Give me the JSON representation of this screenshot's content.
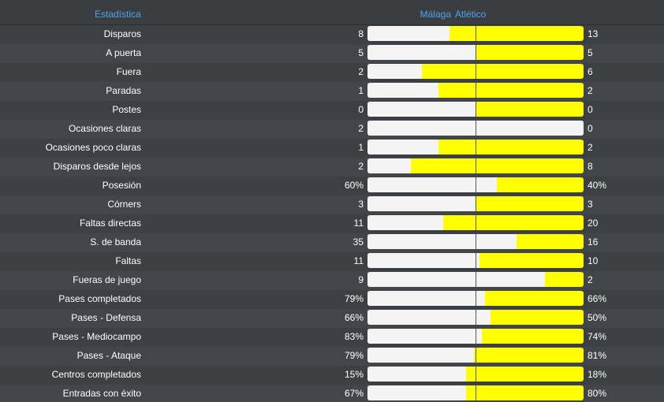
{
  "header": {
    "stat_label": "Estadística",
    "home_team": "Málaga",
    "away_team": "Atlético"
  },
  "colors": {
    "background": "#3b3e41",
    "header_text": "#4ea4ef",
    "home_bar": "#f4f4f4",
    "away_bar": "#ffff00"
  },
  "stats": [
    {
      "label": "Disparos",
      "home": "8",
      "away": "13",
      "home_share": 0.38
    },
    {
      "label": "A puerta",
      "home": "5",
      "away": "5",
      "home_share": 0.5
    },
    {
      "label": "Fuera",
      "home": "2",
      "away": "6",
      "home_share": 0.25
    },
    {
      "label": "Paradas",
      "home": "1",
      "away": "2",
      "home_share": 0.33
    },
    {
      "label": "Postes",
      "home": "0",
      "away": "0",
      "home_share": 0.5
    },
    {
      "label": "Ocasiones claras",
      "home": "2",
      "away": "0",
      "home_share": 1.0
    },
    {
      "label": "Ocasiones poco claras",
      "home": "1",
      "away": "2",
      "home_share": 0.33
    },
    {
      "label": "Disparos desde lejos",
      "home": "2",
      "away": "8",
      "home_share": 0.2
    },
    {
      "label": "Posesión",
      "home": "60%",
      "away": "40%",
      "home_share": 0.6
    },
    {
      "label": "Córners",
      "home": "3",
      "away": "3",
      "home_share": 0.5
    },
    {
      "label": "Faltas directas",
      "home": "11",
      "away": "20",
      "home_share": 0.35
    },
    {
      "label": "S. de banda",
      "home": "35",
      "away": "16",
      "home_share": 0.69
    },
    {
      "label": "Faltas",
      "home": "11",
      "away": "10",
      "home_share": 0.52
    },
    {
      "label": "Fueras de juego",
      "home": "9",
      "away": "2",
      "home_share": 0.82
    },
    {
      "label": "Pases completados",
      "home": "79%",
      "away": "66%",
      "home_share": 0.545
    },
    {
      "label": "Pases - Defensa",
      "home": "66%",
      "away": "50%",
      "home_share": 0.57
    },
    {
      "label": "Pases - Mediocampo",
      "home": "83%",
      "away": "74%",
      "home_share": 0.53
    },
    {
      "label": "Pases - Ataque",
      "home": "79%",
      "away": "81%",
      "home_share": 0.494
    },
    {
      "label": "Centros completados",
      "home": "15%",
      "away": "18%",
      "home_share": 0.455
    },
    {
      "label": "Entradas con éxito",
      "home": "67%",
      "away": "80%",
      "home_share": 0.456
    }
  ]
}
